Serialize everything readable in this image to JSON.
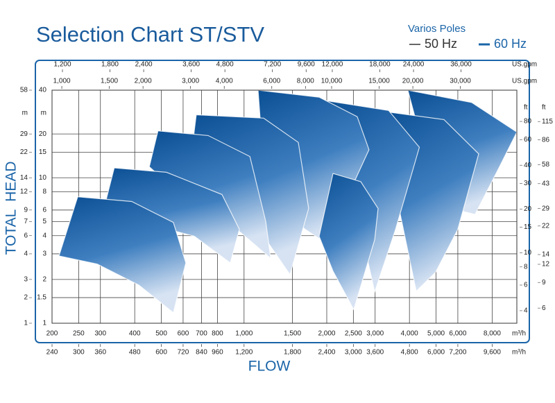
{
  "chart_data": {
    "type": "area",
    "title": "Selection Chart ST/STV",
    "x_label": "FLOW",
    "y_label": "TOTAL  HEAD",
    "legend": {
      "title": "Varios Poles",
      "series": [
        {
          "name": "50 Hz",
          "color": "#333333"
        },
        {
          "name": "60 Hz",
          "color": "#1a64a8"
        }
      ]
    },
    "grid": true,
    "log_scale": true,
    "color": "#0d56a0",
    "xunit": "m³/h",
    "xlim": [
      200,
      9840
    ],
    "xticks": [
      200,
      250,
      300,
      400,
      500,
      600,
      700,
      800,
      {
        "value": 1000,
        "label": "1,000"
      },
      {
        "value": 1500,
        "label": "1,500"
      },
      {
        "value": 2000,
        "label": "2,000"
      },
      {
        "value": 2500,
        "label": "2,500"
      },
      {
        "value": 3000,
        "label": "3,000"
      },
      {
        "value": 4000,
        "label": "4,000"
      },
      {
        "value": 5000,
        "label": "5,000"
      },
      {
        "value": 6000,
        "label": "6,000"
      },
      {
        "value": 8000,
        "label": "8,000"
      }
    ],
    "x2unit": "m³/h",
    "x2lim": [
      240,
      11808
    ],
    "x2ticks": [
      240,
      300,
      360,
      480,
      600,
      720,
      840,
      960,
      {
        "value": 1200,
        "label": "1,200"
      },
      {
        "value": 1800,
        "label": "1,800"
      },
      {
        "value": 2400,
        "label": "2,400"
      },
      {
        "value": 3000,
        "label": "3,000"
      },
      {
        "value": 3600,
        "label": "3,600"
      },
      {
        "value": 4800,
        "label": "4,800"
      },
      {
        "value": 6000,
        "label": "6,000"
      },
      {
        "value": 7200,
        "label": "7,200"
      },
      {
        "value": 9600,
        "label": "9,600"
      }
    ],
    "x3unit": "US.gpm",
    "x3lim": [
      1098,
      57960
    ],
    "x3ticks": [
      {
        "value": 1200,
        "label": "1,200"
      },
      {
        "value": 1800,
        "label": "1,800"
      },
      {
        "value": 2400,
        "label": "2,400"
      },
      {
        "value": 3600,
        "label": "3,600"
      },
      {
        "value": 4800,
        "label": "4,800"
      },
      {
        "value": 7200,
        "label": "7,200"
      },
      {
        "value": 9600,
        "label": "9,600"
      },
      {
        "value": 12000,
        "label": "12,000"
      },
      {
        "value": 18000,
        "label": "18,000"
      },
      {
        "value": 24000,
        "label": "24,000"
      },
      {
        "value": 36000,
        "label": "36,000"
      }
    ],
    "x4unit": "US.gpm",
    "x4lim": [
      920,
      48580
    ],
    "x4ticks": [
      {
        "value": 1000,
        "label": "1,000"
      },
      {
        "value": 1500,
        "label": "1,500"
      },
      {
        "value": 2000,
        "label": "2,000"
      },
      {
        "value": 3000,
        "label": "3,000"
      },
      {
        "value": 4000,
        "label": "4,000"
      },
      {
        "value": 6000,
        "label": "6,000"
      },
      {
        "value": 8000,
        "label": "8,000"
      },
      {
        "value": 10000,
        "label": "10,000"
      },
      {
        "value": 15000,
        "label": "15,000"
      },
      {
        "value": 20000,
        "label": "20,000"
      },
      {
        "value": 30000,
        "label": "30,000"
      }
    ],
    "yunit": "m",
    "ylim": [
      1,
      40
    ],
    "yticks": [
      1,
      1.5,
      2,
      3,
      4,
      5,
      6,
      8,
      10,
      15,
      20,
      40
    ],
    "y2unit": "m",
    "y2lim": [
      1.44,
      57.6
    ],
    "y2ticks": [
      {
        "value": 1.44,
        "label": "1"
      },
      {
        "value": 2.16,
        "label": "2"
      },
      {
        "value": 2.88,
        "label": "3"
      },
      {
        "value": 4.32,
        "label": "4"
      },
      {
        "value": 5.76,
        "label": "6"
      },
      {
        "value": 7.2,
        "label": "7"
      },
      {
        "value": 8.64,
        "label": "9"
      },
      {
        "value": 11.52,
        "label": "12"
      },
      {
        "value": 14.4,
        "label": "14"
      },
      {
        "value": 21.6,
        "label": "22"
      },
      {
        "value": 28.8,
        "label": "29"
      },
      {
        "value": 57.6,
        "label": "58"
      }
    ],
    "y3unit": "ft",
    "y3lim": [
      3.28,
      131.2
    ],
    "y3ticks": [
      4,
      6,
      8,
      10,
      15,
      20,
      30,
      40,
      60,
      80
    ],
    "y4unit": "ft",
    "y4lim": [
      4.72,
      188.9
    ],
    "y4ticks": [
      6,
      9,
      12,
      14,
      22,
      29,
      43,
      58,
      86,
      115
    ],
    "shapes": [
      {
        "x": [
          3946,
          6740,
          9840,
          8510,
          6930,
          5660,
          4755
        ],
        "y": [
          40,
          32.9,
          20.6,
          11.9,
          5.6,
          6.15,
          10.7
        ]
      },
      {
        "x": [
          3160,
          5345,
          7146,
          6000,
          4980,
          4235,
          3667,
          3357
        ],
        "y": [
          28.7,
          25.1,
          14.6,
          4.42,
          2.24,
          1.66,
          6.15,
          13.3
        ]
      },
      {
        "x": [
          1988,
          3357,
          4347,
          3560,
          2990,
          2660,
          2366
        ],
        "y": [
          33.9,
          29,
          16.2,
          4.42,
          1.64,
          4.42,
          9
        ]
      },
      {
        "x": [
          1125,
          1876,
          2582,
          2850,
          1988,
          1670,
          1324,
          1178
        ],
        "y": [
          40,
          35.8,
          26.3,
          15.6,
          3.55,
          4.42,
          6.15,
          11.9
        ]
      },
      {
        "x": [
          2108,
          2660,
          3076,
          2990,
          2508,
          2108,
          1876
        ],
        "y": [
          10.7,
          9.4,
          6.15,
          3.75,
          1.24,
          2.28,
          3.96
        ]
      },
      {
        "x": [
          670,
          1178,
          1576,
          1718,
          1470,
          1178,
          831,
          621
        ],
        "y": [
          27.1,
          25.7,
          17.5,
          6.15,
          2.16,
          3.96,
          6.15,
          8.57
        ]
      },
      {
        "x": [
          486,
          740,
          1050,
          1200,
          1250,
          881,
          586,
          452
        ],
        "y": [
          21,
          19.5,
          14,
          5,
          2.79,
          4.93,
          7.67,
          11.9
        ]
      },
      {
        "x": [
          337,
          522,
          831,
          962,
          891,
          659,
          414,
          309
        ],
        "y": [
          11.7,
          10.9,
          7.67,
          4.42,
          2.6,
          3.96,
          5.0,
          6.15
        ]
      },
      {
        "x": [
          248,
          390,
          553,
          614,
          553,
          414,
          292,
          212
        ],
        "y": [
          7.4,
          6.87,
          4.93,
          2.6,
          1.18,
          1.83,
          2.55,
          2.9
        ]
      }
    ]
  }
}
